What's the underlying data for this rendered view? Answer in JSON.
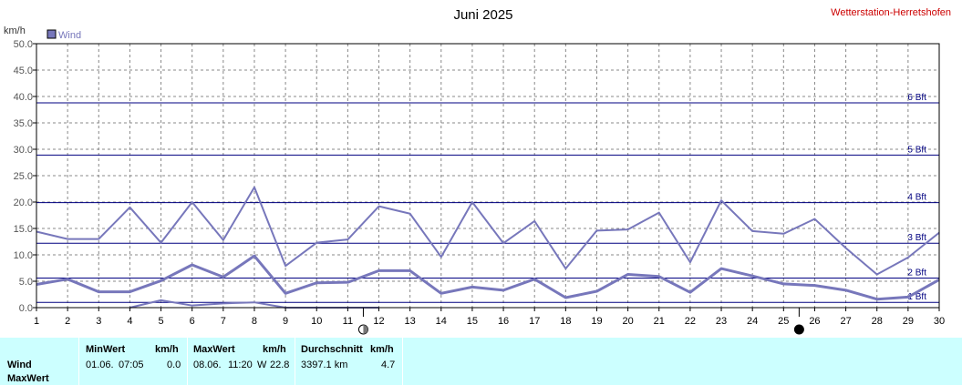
{
  "header": {
    "title": "Juni 2025",
    "station": "Wetterstation-Herretshofen",
    "y_unit": "km/h"
  },
  "legend": {
    "label": "Wind",
    "color": "#7777bb"
  },
  "colors": {
    "series": "#7777bb",
    "beaufort_line": "#000080",
    "beaufort_label": "#000080",
    "grid": "#888888",
    "station_text": "#cc0000",
    "table_bg": "#ccffff"
  },
  "chart_data": {
    "type": "line",
    "title": "Juni 2025",
    "ylabel": "km/h",
    "xlim": [
      1,
      30
    ],
    "ylim": [
      0,
      50
    ],
    "y_ticks": [
      "0.0",
      "5.0",
      "10.0",
      "15.0",
      "20.0",
      "25.0",
      "30.0",
      "35.0",
      "40.0",
      "45.0",
      "50.0"
    ],
    "x_ticks": [
      "1",
      "2",
      "3",
      "4",
      "5",
      "6",
      "7",
      "8",
      "9",
      "10",
      "11",
      "12",
      "13",
      "14",
      "15",
      "16",
      "17",
      "18",
      "19",
      "20",
      "21",
      "22",
      "23",
      "24",
      "25",
      "26",
      "27",
      "28",
      "29",
      "30"
    ],
    "grid": true,
    "legend_position": "top-left",
    "series": [
      {
        "name": "MaxWert",
        "style": "thin",
        "x": [
          1,
          2,
          3,
          4,
          5,
          6,
          7,
          8,
          9,
          10,
          11,
          12,
          13,
          14,
          15,
          16,
          17,
          18,
          19,
          20,
          21,
          22,
          23,
          24,
          25,
          26,
          27,
          28,
          29,
          30
        ],
        "values": [
          14.4,
          13.0,
          13.0,
          19.0,
          12.3,
          20.0,
          12.8,
          22.8,
          7.9,
          12.3,
          12.9,
          19.2,
          17.8,
          9.6,
          20.0,
          12.2,
          16.4,
          7.4,
          14.6,
          14.8,
          18.0,
          8.6,
          20.3,
          14.5,
          14.0,
          16.8,
          11.3,
          6.3,
          9.5,
          14.2
        ]
      },
      {
        "name": "Wind",
        "style": "thick",
        "x": [
          1,
          2,
          3,
          4,
          5,
          6,
          7,
          8,
          9,
          10,
          11,
          12,
          13,
          14,
          15,
          16,
          17,
          18,
          19,
          20,
          21,
          22,
          23,
          24,
          25,
          26,
          27,
          28,
          29,
          30
        ],
        "values": [
          4.4,
          5.4,
          3.0,
          3.0,
          5.1,
          8.1,
          5.8,
          9.8,
          2.7,
          4.7,
          4.8,
          7.0,
          7.0,
          2.7,
          3.9,
          3.3,
          5.4,
          1.9,
          3.1,
          6.3,
          5.9,
          2.9,
          7.4,
          6.0,
          4.5,
          4.2,
          3.3,
          1.6,
          2.0,
          5.3
        ]
      },
      {
        "name": "MinWert",
        "style": "thin",
        "x": [
          4,
          5,
          6,
          7,
          8,
          9,
          10,
          11,
          12
        ],
        "values": [
          0.0,
          1.4,
          0.4,
          0.8,
          1.0,
          0.0,
          0.0,
          0.0,
          0.0
        ]
      }
    ],
    "beaufort": [
      {
        "label": "1 Bft",
        "value": 1.0
      },
      {
        "label": "2 Bft",
        "value": 5.6
      },
      {
        "label": "3 Bft",
        "value": 12.2
      },
      {
        "label": "4 Bft",
        "value": 19.9
      },
      {
        "label": "5 Bft",
        "value": 28.9
      },
      {
        "label": "6 Bft",
        "value": 38.8
      }
    ],
    "moon_phases": [
      {
        "day": 11.5,
        "phase": "first-quarter"
      },
      {
        "day": 25.5,
        "phase": "new-moon"
      }
    ]
  },
  "table": {
    "rows": [
      "Wind",
      "MaxWert"
    ],
    "min": {
      "header": "MinWert",
      "unit": "km/h",
      "date": "01.06.",
      "time": "07:05",
      "value": "0.0"
    },
    "max": {
      "header": "MaxWert",
      "unit": "km/h",
      "date": "08.06.",
      "time": "11:20",
      "dir": "W",
      "value": "22.8"
    },
    "avg": {
      "header": "Durchschnitt",
      "unit": "km/h",
      "distance": "3397.1 km",
      "value": "4.7"
    }
  }
}
